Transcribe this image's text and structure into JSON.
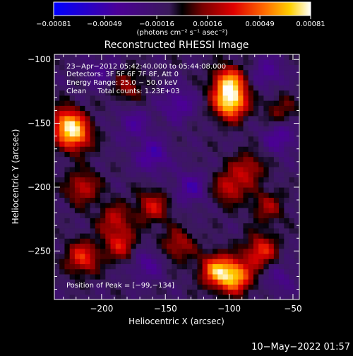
{
  "chart_data": {
    "type": "heatmap",
    "title": "Reconstructed RHESSI Image",
    "xlabel": "Heliocentric X (arcsec)",
    "ylabel": "Heliocentric Y (arcsec)",
    "xlim": [
      -237,
      -45
    ],
    "ylim": [
      -288,
      -96
    ],
    "x_ticks": [
      -200,
      -150,
      -100,
      -50
    ],
    "y_ticks": [
      -100,
      -150,
      -200,
      -250
    ],
    "x_tick_labels": [
      "−200",
      "−150",
      "−100",
      "−50"
    ],
    "y_tick_labels": [
      "−100",
      "−150",
      "−200",
      "−250"
    ],
    "colorbar": {
      "range": [
        -0.00081,
        0.00081
      ],
      "tick_labels": [
        "−0.00081",
        "−0.00049",
        "−0.00016",
        "0.00016",
        "0.00049",
        "0.00081"
      ],
      "label": "(photons cm⁻² s⁻¹ asec⁻²)"
    },
    "annotations": {
      "time_range": "23−Apr−2012 05:42:40.000 to 05:44:08.000",
      "detectors": "Detectors: 3F 5F 6F 7F 8F, Att 0",
      "energy_range": "Energy Range: 25.0 − 50.0 keV",
      "clean_counts": "Clean     Total counts: 1.23E+03",
      "peak": "Position of Peak = [−99,−134]"
    },
    "peak_position": [
      -99,
      -134
    ],
    "hotspots": [
      {
        "x": -99,
        "y": -134,
        "value": 0.00081
      },
      {
        "x": -100,
        "y": -118,
        "value": 0.0007
      },
      {
        "x": -227,
        "y": -150,
        "value": 0.00065
      },
      {
        "x": -220,
        "y": -160,
        "value": 0.00055
      },
      {
        "x": -215,
        "y": -200,
        "value": 0.0004
      },
      {
        "x": -190,
        "y": -225,
        "value": 0.00035
      },
      {
        "x": -185,
        "y": -245,
        "value": 0.0004
      },
      {
        "x": -215,
        "y": -255,
        "value": 0.0005
      },
      {
        "x": -160,
        "y": -215,
        "value": 0.0004
      },
      {
        "x": -140,
        "y": -245,
        "value": 0.00035
      },
      {
        "x": -110,
        "y": -265,
        "value": 0.00065
      },
      {
        "x": -95,
        "y": -270,
        "value": 0.0007
      },
      {
        "x": -75,
        "y": -250,
        "value": 0.0005
      },
      {
        "x": -100,
        "y": -200,
        "value": 0.0004
      },
      {
        "x": -85,
        "y": -185,
        "value": 0.00035
      },
      {
        "x": -180,
        "y": -120,
        "value": 0.0003
      },
      {
        "x": -60,
        "y": -140,
        "value": 0.00025
      },
      {
        "x": -70,
        "y": -215,
        "value": 0.0003
      }
    ],
    "coldspots": [
      {
        "x": -160,
        "y": -175,
        "value": -0.00035
      },
      {
        "x": -140,
        "y": -135,
        "value": -0.0003
      },
      {
        "x": -175,
        "y": -150,
        "value": -0.00025
      },
      {
        "x": -60,
        "y": -160,
        "value": -0.0003
      },
      {
        "x": -70,
        "y": -110,
        "value": -0.00025
      },
      {
        "x": -130,
        "y": -200,
        "value": -0.0003
      },
      {
        "x": -165,
        "y": -260,
        "value": -0.00025
      },
      {
        "x": -60,
        "y": -270,
        "value": -0.0002
      },
      {
        "x": -200,
        "y": -110,
        "value": -0.0002
      }
    ]
  },
  "footer_timestamp": "10−May−2022 01:57"
}
